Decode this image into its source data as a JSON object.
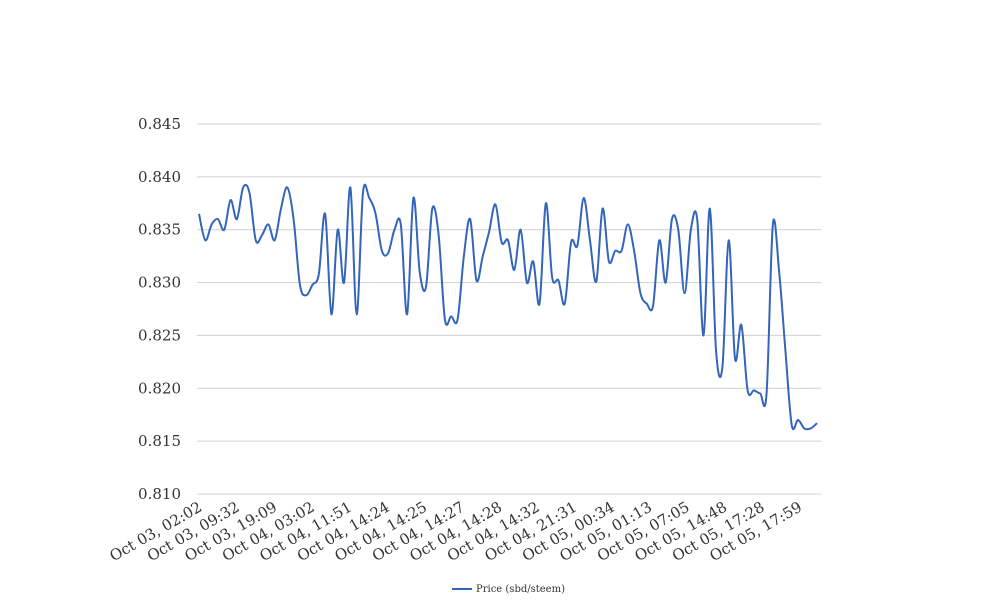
{
  "chart_data": {
    "type": "line",
    "title": "",
    "xlabel": "",
    "ylabel": "",
    "ylim": [
      0.81,
      0.845
    ],
    "yticks": [
      "0.810",
      "0.815",
      "0.820",
      "0.825",
      "0.830",
      "0.835",
      "0.840",
      "0.845"
    ],
    "grid": true,
    "legend_position": "bottom-center",
    "line_color": "#3366bb",
    "x_tick_labels": [
      "Oct 03, 02:02",
      "Oct 03, 09:32",
      "Oct 03, 19:09",
      "Oct 04, 03:02",
      "Oct 04, 11:51",
      "Oct 04, 14:24",
      "Oct 04, 14:25",
      "Oct 04, 14:27",
      "Oct 04, 14:28",
      "Oct 04, 14:32",
      "Oct 04, 21:31",
      "Oct 05, 00:34",
      "Oct 05, 01:13",
      "Oct 05, 07:05",
      "Oct 05, 14:48",
      "Oct 05, 17:28",
      "Oct 05, 17:59"
    ],
    "series": [
      {
        "name": "Price (sbd/steem)",
        "values": [
          0.8365,
          0.834,
          0.8355,
          0.836,
          0.835,
          0.8378,
          0.836,
          0.839,
          0.8385,
          0.834,
          0.8345,
          0.8355,
          0.834,
          0.837,
          0.839,
          0.836,
          0.8298,
          0.8288,
          0.8298,
          0.8308,
          0.8365,
          0.827,
          0.835,
          0.83,
          0.839,
          0.827,
          0.8385,
          0.838,
          0.8365,
          0.833,
          0.8328,
          0.835,
          0.8355,
          0.827,
          0.838,
          0.831,
          0.8296,
          0.837,
          0.8345,
          0.8265,
          0.8268,
          0.8265,
          0.8325,
          0.836,
          0.8302,
          0.8325,
          0.8348,
          0.8374,
          0.8338,
          0.834,
          0.8312,
          0.835,
          0.83,
          0.832,
          0.828,
          0.8375,
          0.8305,
          0.8302,
          0.828,
          0.8338,
          0.8335,
          0.838,
          0.834,
          0.8301,
          0.837,
          0.832,
          0.833,
          0.833,
          0.8355,
          0.833,
          0.829,
          0.828,
          0.8278,
          0.834,
          0.83,
          0.836,
          0.835,
          0.829,
          0.835,
          0.836,
          0.825,
          0.837,
          0.8235,
          0.822,
          0.834,
          0.8228,
          0.826,
          0.8198,
          0.8198,
          0.8195,
          0.8195,
          0.8355,
          0.831,
          0.8235,
          0.8165,
          0.817,
          0.8162,
          0.8162,
          0.8167
        ]
      }
    ]
  }
}
